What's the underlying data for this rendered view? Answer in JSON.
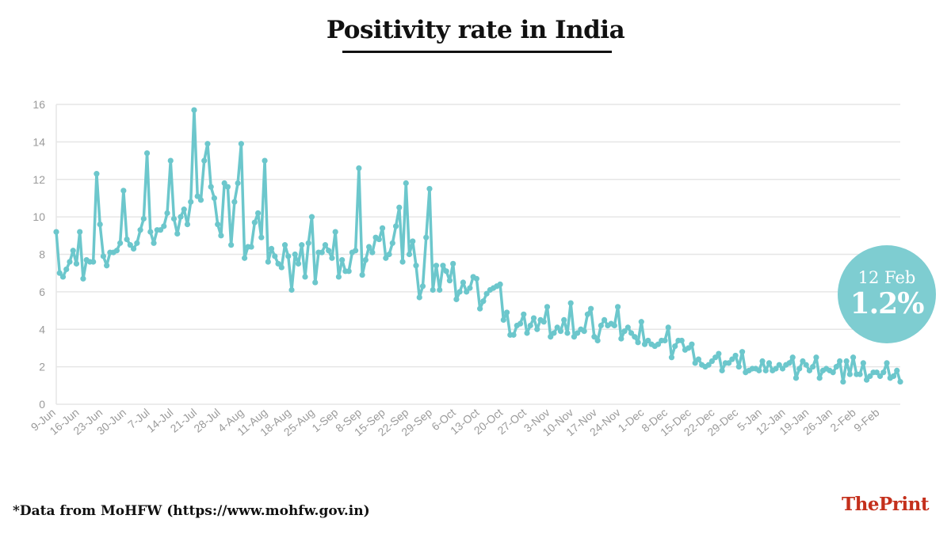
{
  "header": {
    "title": "Positivity rate in India"
  },
  "footer": {
    "source_note": "*Data from MoHFW (https://www.mohfw.gov.in)",
    "logo_the": "The",
    "logo_print": "Print"
  },
  "callout": {
    "date": "12 Feb",
    "value": "1.2%"
  },
  "colors": {
    "series": "#6cc7cc",
    "badge": "#7ecdd1",
    "logo_the": "#c4301c",
    "logo_print": "#c4301c"
  },
  "chart_data": {
    "type": "line",
    "title": "Positivity rate in India",
    "xlabel": "",
    "ylabel": "",
    "ylim": [
      0,
      16
    ],
    "yticks": [
      0,
      2,
      4,
      6,
      8,
      10,
      12,
      14,
      16
    ],
    "grid": true,
    "x_tick_labels": [
      "9-Jun",
      "16-Jun",
      "23-Jun",
      "30-Jun",
      "7-Jul",
      "14-Jul",
      "21-Jul",
      "28-Jul",
      "4-Aug",
      "11-Aug",
      "18-Aug",
      "25-Aug",
      "1-Sep",
      "8-Sep",
      "15-Sep",
      "22-Sep",
      "29-Sep",
      "6-Oct",
      "13-Oct",
      "20-Oct",
      "27-Oct",
      "3-Nov",
      "10-Nov",
      "17-Nov",
      "24-Nov",
      "1-Dec",
      "8-Dec",
      "15-Dec",
      "22-Dec",
      "29-Dec",
      "5-Jan",
      "12-Jan",
      "19-Jan",
      "26-Jan",
      "2-Feb",
      "9-Feb"
    ],
    "x_range": [
      "9-Jun",
      "12-Feb"
    ],
    "series": [
      {
        "values": [
          9.2,
          7.0,
          6.8,
          7.2,
          7.6,
          8.2,
          7.5,
          9.2,
          6.7,
          7.7,
          7.6,
          7.6,
          12.3,
          9.6,
          7.9,
          7.4,
          8.1,
          8.1,
          8.2,
          8.6,
          11.4,
          8.8,
          8.5,
          8.3,
          8.6,
          9.3,
          9.9,
          13.4,
          9.2,
          8.6,
          9.3,
          9.3,
          9.5,
          10.2,
          13.0,
          9.9,
          9.1,
          10.0,
          10.4,
          9.6,
          10.8,
          15.7,
          11.1,
          10.9,
          13.0,
          13.9,
          11.6,
          11.0,
          9.6,
          9.0,
          11.8,
          11.6,
          8.5,
          10.8,
          11.8,
          13.9,
          7.8,
          8.4,
          8.4,
          9.7,
          10.2,
          8.9,
          13.0,
          7.6,
          8.3,
          7.9,
          7.5,
          7.3,
          8.5,
          7.9,
          6.1,
          8.0,
          7.5,
          8.5,
          6.8,
          8.6,
          10.0,
          6.5,
          8.1,
          8.1,
          8.5,
          8.2,
          7.8,
          9.2,
          6.8,
          7.7,
          7.1,
          7.1,
          8.1,
          8.2,
          12.6,
          6.9,
          7.7,
          8.4,
          8.1,
          8.9,
          8.8,
          9.4,
          7.8,
          8.0,
          8.6,
          9.5,
          10.5,
          7.6,
          11.8,
          8.0,
          8.7,
          7.4,
          5.7,
          6.3,
          8.9,
          11.5,
          6.1,
          7.4,
          6.1,
          7.4,
          7.1,
          6.6,
          7.5,
          5.6,
          6.0,
          6.5,
          6.0,
          6.2,
          6.8,
          6.7,
          5.1,
          5.5,
          5.9,
          6.1,
          6.2,
          6.3,
          6.4,
          4.5,
          4.9,
          3.7,
          3.7,
          4.2,
          4.3,
          4.8,
          3.8,
          4.2,
          4.6,
          4.0,
          4.5,
          4.4,
          5.2,
          3.6,
          3.8,
          4.1,
          3.9,
          4.5,
          3.8,
          5.4,
          3.6,
          3.8,
          4.0,
          3.9,
          4.8,
          5.1,
          3.6,
          3.4,
          4.2,
          4.5,
          4.2,
          4.3,
          4.2,
          5.2,
          3.5,
          3.9,
          4.1,
          3.8,
          3.6,
          3.3,
          4.4,
          3.2,
          3.4,
          3.2,
          3.1,
          3.2,
          3.4,
          3.4,
          4.1,
          2.5,
          3.1,
          3.4,
          3.4,
          2.9,
          3.0,
          3.2,
          2.2,
          2.4,
          2.1,
          2.0,
          2.1,
          2.3,
          2.5,
          2.7,
          1.8,
          2.2,
          2.2,
          2.4,
          2.6,
          2.0,
          2.8,
          1.7,
          1.8,
          1.9,
          1.9,
          1.8,
          2.3,
          1.8,
          2.2,
          1.8,
          1.9,
          2.1,
          1.9,
          2.1,
          2.2,
          2.5,
          1.4,
          1.9,
          2.3,
          2.1,
          1.8,
          2.0,
          2.5,
          1.4,
          1.8,
          1.9,
          1.8,
          1.7,
          2.0,
          2.3,
          1.2,
          2.3,
          1.6,
          2.5,
          1.6,
          1.6,
          2.2,
          1.3,
          1.5,
          1.7,
          1.7,
          1.5,
          1.7,
          2.2,
          1.4,
          1.5,
          1.8,
          1.2
        ]
      }
    ]
  }
}
